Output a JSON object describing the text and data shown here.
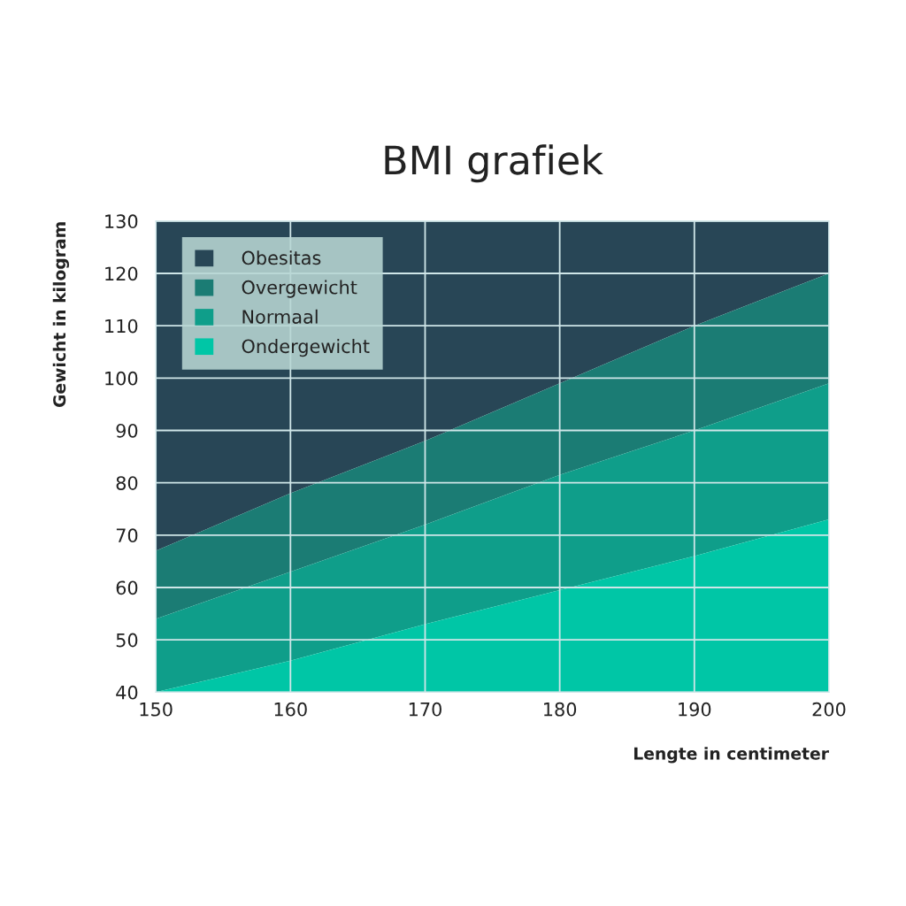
{
  "chart_data": {
    "type": "area",
    "title": "BMI grafiek",
    "xlabel": "Lengte in centimeter",
    "ylabel": "Gewicht in kilogram",
    "x": [
      150,
      160,
      170,
      180,
      190,
      200
    ],
    "series": [
      {
        "name": "Obesitas",
        "color": "#284656",
        "values": [
          130,
          130,
          130,
          130,
          130,
          130
        ]
      },
      {
        "name": "Overgewicht",
        "color": "#1b7c74",
        "values": [
          67,
          78,
          88,
          99,
          110,
          120
        ]
      },
      {
        "name": "Normaal",
        "color": "#0f9e8a",
        "values": [
          54,
          63,
          72,
          81.5,
          90,
          99
        ]
      },
      {
        "name": "Ondergewicht",
        "color": "#00c6a6",
        "values": [
          40,
          46,
          53,
          59.5,
          66,
          73
        ]
      }
    ],
    "xlim": [
      150,
      200
    ],
    "xticks": [
      150,
      160,
      170,
      180,
      190,
      200
    ],
    "ylim": [
      40,
      130
    ],
    "yticks": [
      40,
      50,
      60,
      70,
      80,
      90,
      100,
      110,
      120,
      130
    ],
    "grid": true,
    "legend": "top left"
  }
}
